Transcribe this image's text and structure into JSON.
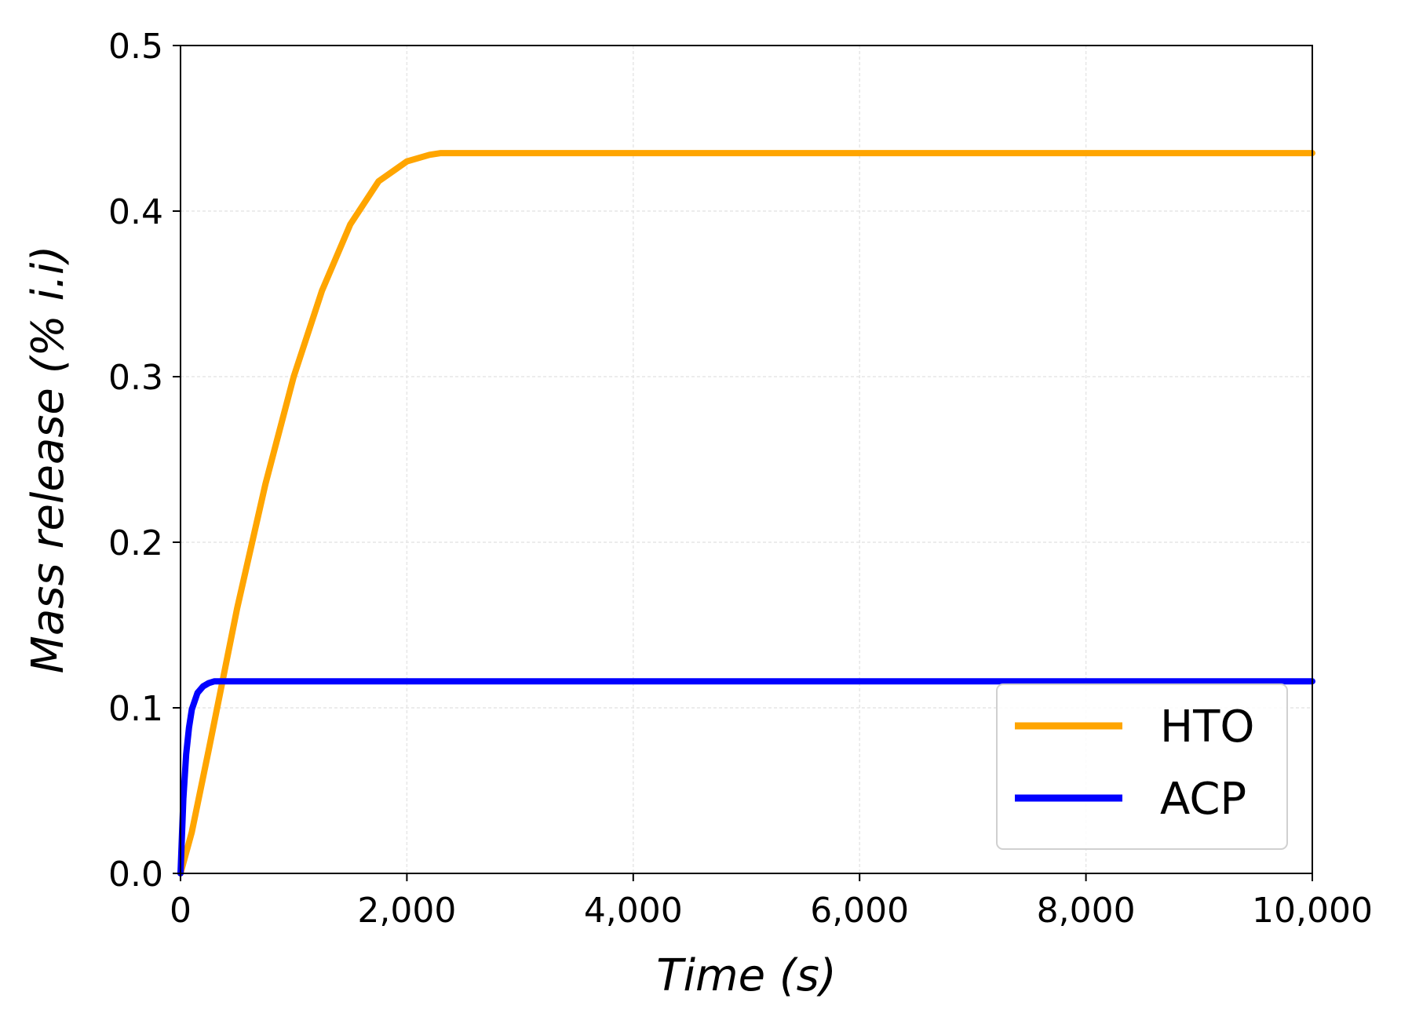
{
  "chart_data": {
    "type": "line",
    "title": "",
    "xlabel": "Time (s)",
    "ylabel": "Mass release (% i.i)",
    "xlim": [
      0,
      10000
    ],
    "ylim": [
      0,
      0.5
    ],
    "x_ticks": [
      0,
      2000,
      4000,
      6000,
      8000,
      10000
    ],
    "x_tick_labels": [
      "0",
      "2,000",
      "4,000",
      "6,000",
      "8,000",
      "10,000"
    ],
    "y_ticks": [
      0.0,
      0.1,
      0.2,
      0.3,
      0.4,
      0.5
    ],
    "y_tick_labels": [
      "0.0",
      "0.1",
      "0.2",
      "0.3",
      "0.4",
      "0.5"
    ],
    "grid": true,
    "legend_position": "bottom-right",
    "series": [
      {
        "name": "HTO",
        "color": "#FFA500",
        "x": [
          0,
          100,
          250,
          500,
          750,
          1000,
          1250,
          1500,
          1750,
          2000,
          2200,
          2300,
          3000,
          4000,
          6000,
          8000,
          10000
        ],
        "y": [
          0.0,
          0.025,
          0.075,
          0.16,
          0.235,
          0.3,
          0.352,
          0.392,
          0.418,
          0.43,
          0.434,
          0.435,
          0.435,
          0.435,
          0.435,
          0.435,
          0.435
        ]
      },
      {
        "name": "ACP",
        "color": "#0000FF",
        "x": [
          0,
          25,
          50,
          75,
          100,
          150,
          200,
          250,
          300,
          400,
          500,
          1000,
          2000,
          4000,
          6000,
          8000,
          10000
        ],
        "y": [
          0.0,
          0.045,
          0.072,
          0.088,
          0.099,
          0.109,
          0.113,
          0.115,
          0.116,
          0.116,
          0.116,
          0.116,
          0.116,
          0.116,
          0.116,
          0.116,
          0.116
        ]
      }
    ]
  }
}
